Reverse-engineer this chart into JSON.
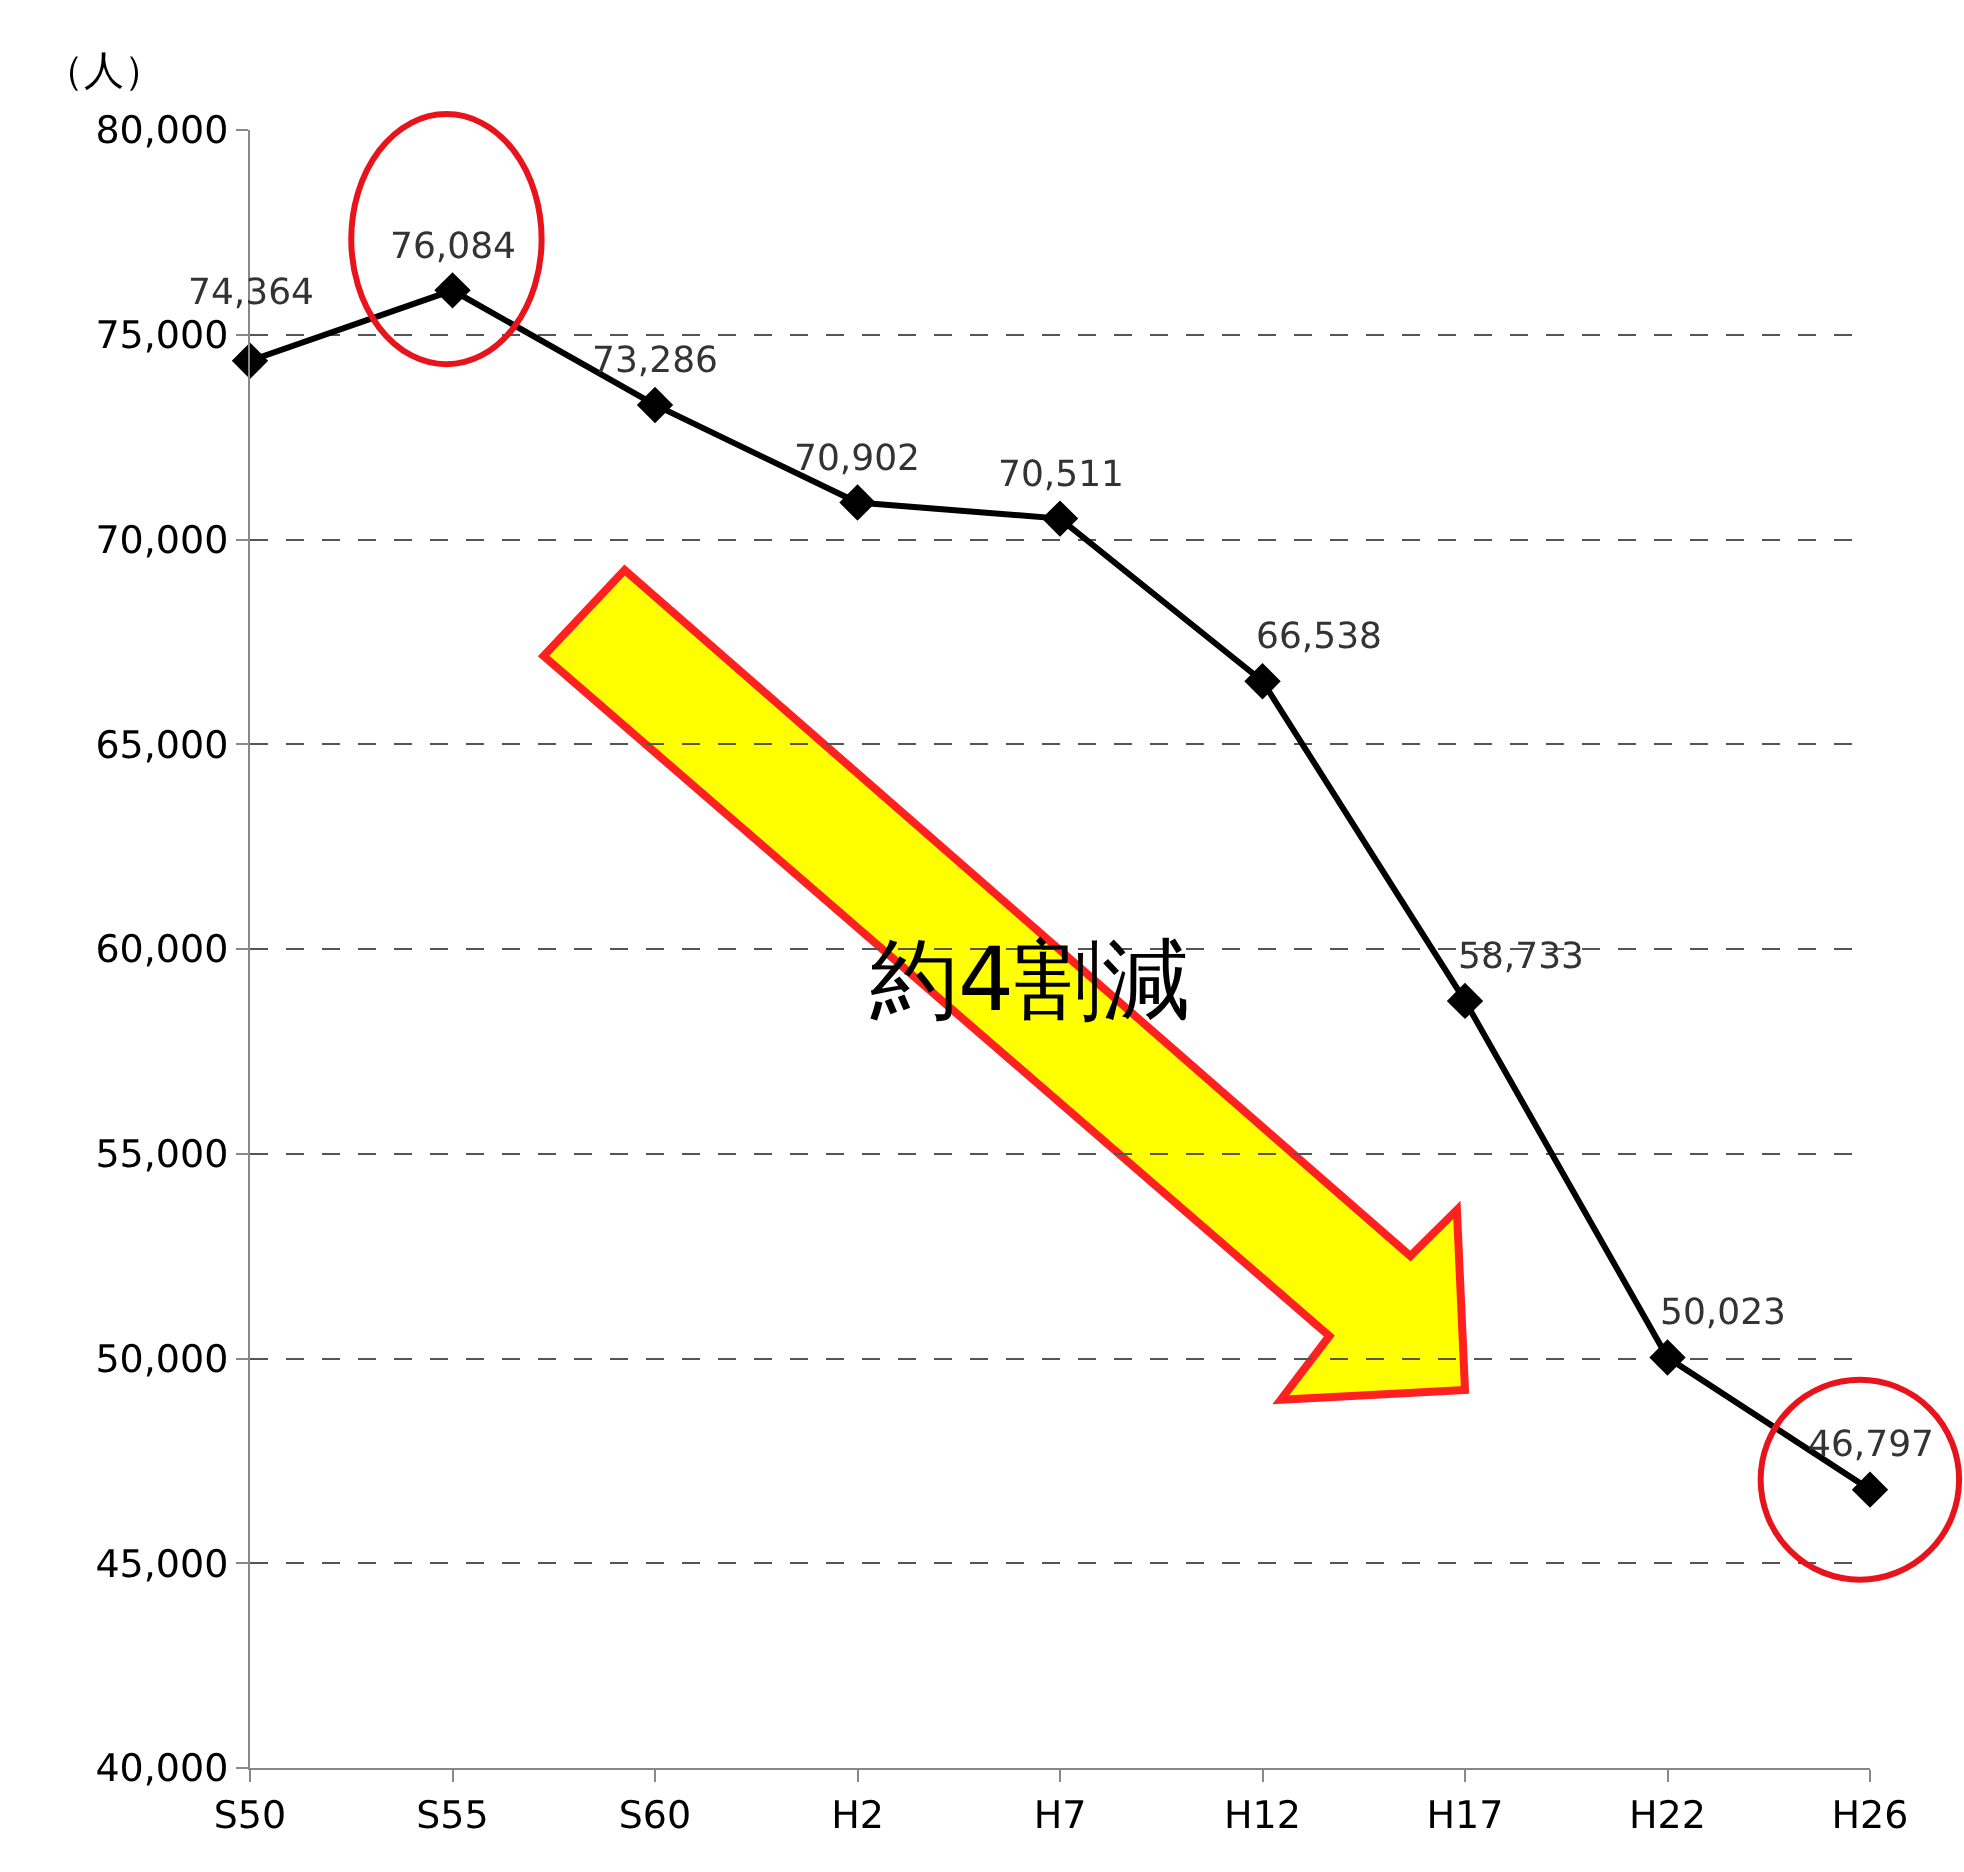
{
  "chart_data": {
    "type": "line",
    "ylabel": "（人）",
    "categories": [
      "S50",
      "S55",
      "S60",
      "H2",
      "H7",
      "H12",
      "H17",
      "H22",
      "H26"
    ],
    "series": [
      {
        "color": "#000000",
        "values": [
          74364,
          76084,
          73286,
          70902,
          70511,
          66538,
          58733,
          50023,
          46797
        ],
        "value_labels": [
          "74,364",
          "76,084",
          "73,286",
          "70,902",
          "70,511",
          "66,538",
          "58,733",
          "50,023",
          "46,797"
        ]
      }
    ],
    "ylim": [
      40000,
      80000
    ],
    "yticks": [
      {
        "value": 40000,
        "label": "40,000"
      },
      {
        "value": 45000,
        "label": "45,000"
      },
      {
        "value": 50000,
        "label": "50,000"
      },
      {
        "value": 55000,
        "label": "55,000"
      },
      {
        "value": 60000,
        "label": "60,000"
      },
      {
        "value": 65000,
        "label": "65,000"
      },
      {
        "value": 70000,
        "label": "70,000"
      },
      {
        "value": 75000,
        "label": "75,000"
      },
      {
        "value": 80000,
        "label": "80,000"
      }
    ],
    "grid": "y",
    "marker": "diamond",
    "line_style": "solid",
    "annotations": [
      "約4割減"
    ]
  }
}
